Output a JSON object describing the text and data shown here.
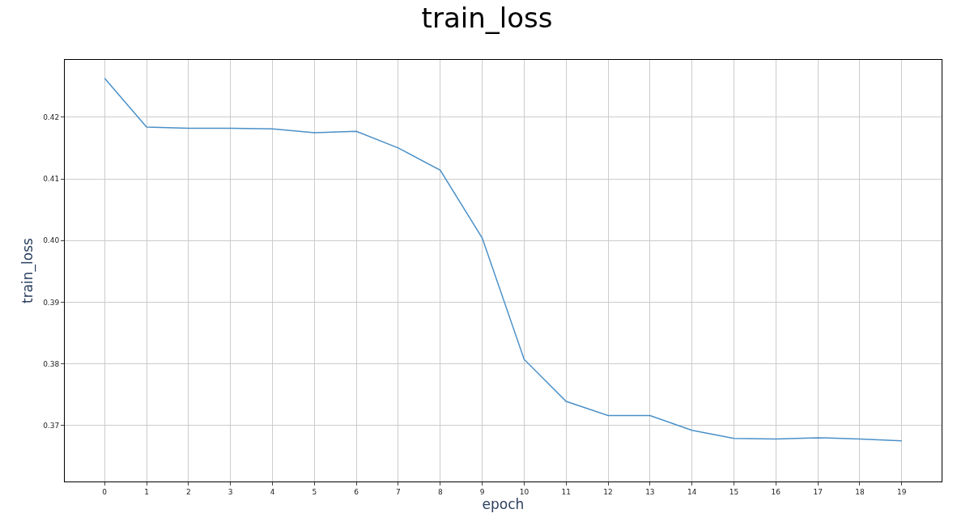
{
  "chart_data": {
    "type": "line",
    "title": "train_loss",
    "xlabel": "epoch",
    "ylabel": "train_loss",
    "x": [
      0,
      1,
      2,
      3,
      4,
      5,
      6,
      7,
      8,
      9,
      10,
      11,
      12,
      13,
      14,
      15,
      16,
      17,
      18,
      19
    ],
    "series": [
      {
        "color": "#4a90c8",
        "values": [
          0.4263,
          0.4184,
          0.4182,
          0.4182,
          0.4181,
          0.4175,
          0.4177,
          0.415,
          0.4114,
          0.4004,
          0.3807,
          0.3739,
          0.3716,
          0.3716,
          0.3692,
          0.3679,
          0.3678,
          0.368,
          0.3678,
          0.3675
        ]
      }
    ],
    "xlim": [
      -0.95,
      19.95
    ],
    "xticks": [
      0,
      1,
      2,
      3,
      4,
      5,
      6,
      7,
      8,
      9,
      10,
      11,
      12,
      13,
      14,
      15,
      16,
      17,
      18,
      19
    ],
    "ylim": [
      0.3609,
      0.4293
    ],
    "yticks": [
      {
        "value": 0.37,
        "label": "0.37"
      },
      {
        "value": 0.38,
        "label": "0.38"
      },
      {
        "value": 0.39,
        "label": "0.39"
      },
      {
        "value": 0.4,
        "label": "0.40"
      },
      {
        "value": 0.41,
        "label": "0.41"
      },
      {
        "value": 0.42,
        "label": "0.42"
      }
    ],
    "grid": true,
    "marker": "none",
    "line_style": "solid"
  }
}
